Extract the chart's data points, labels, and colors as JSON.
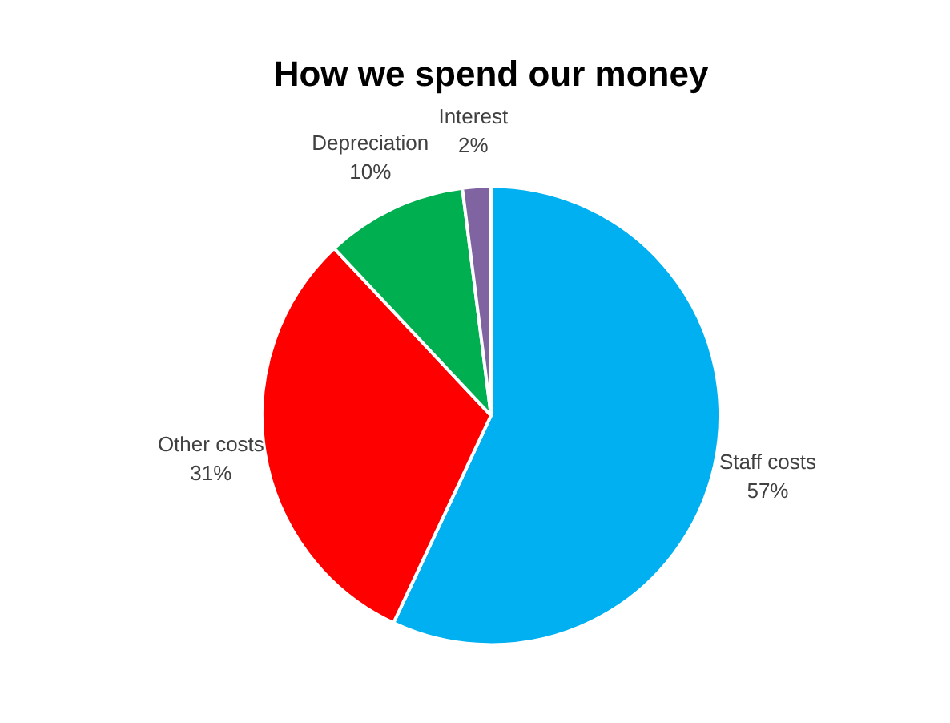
{
  "chart_data": {
    "type": "pie",
    "title": "How we spend our money",
    "categories": [
      "Staff costs",
      "Other costs",
      "Depreciation",
      "Interest"
    ],
    "values": [
      57,
      31,
      10,
      2
    ],
    "colors": [
      "#00b0f0",
      "#ff0000",
      "#00b050",
      "#8064a2"
    ],
    "value_labels": [
      "57%",
      "31%",
      "10%",
      "2%"
    ],
    "legend": false
  }
}
